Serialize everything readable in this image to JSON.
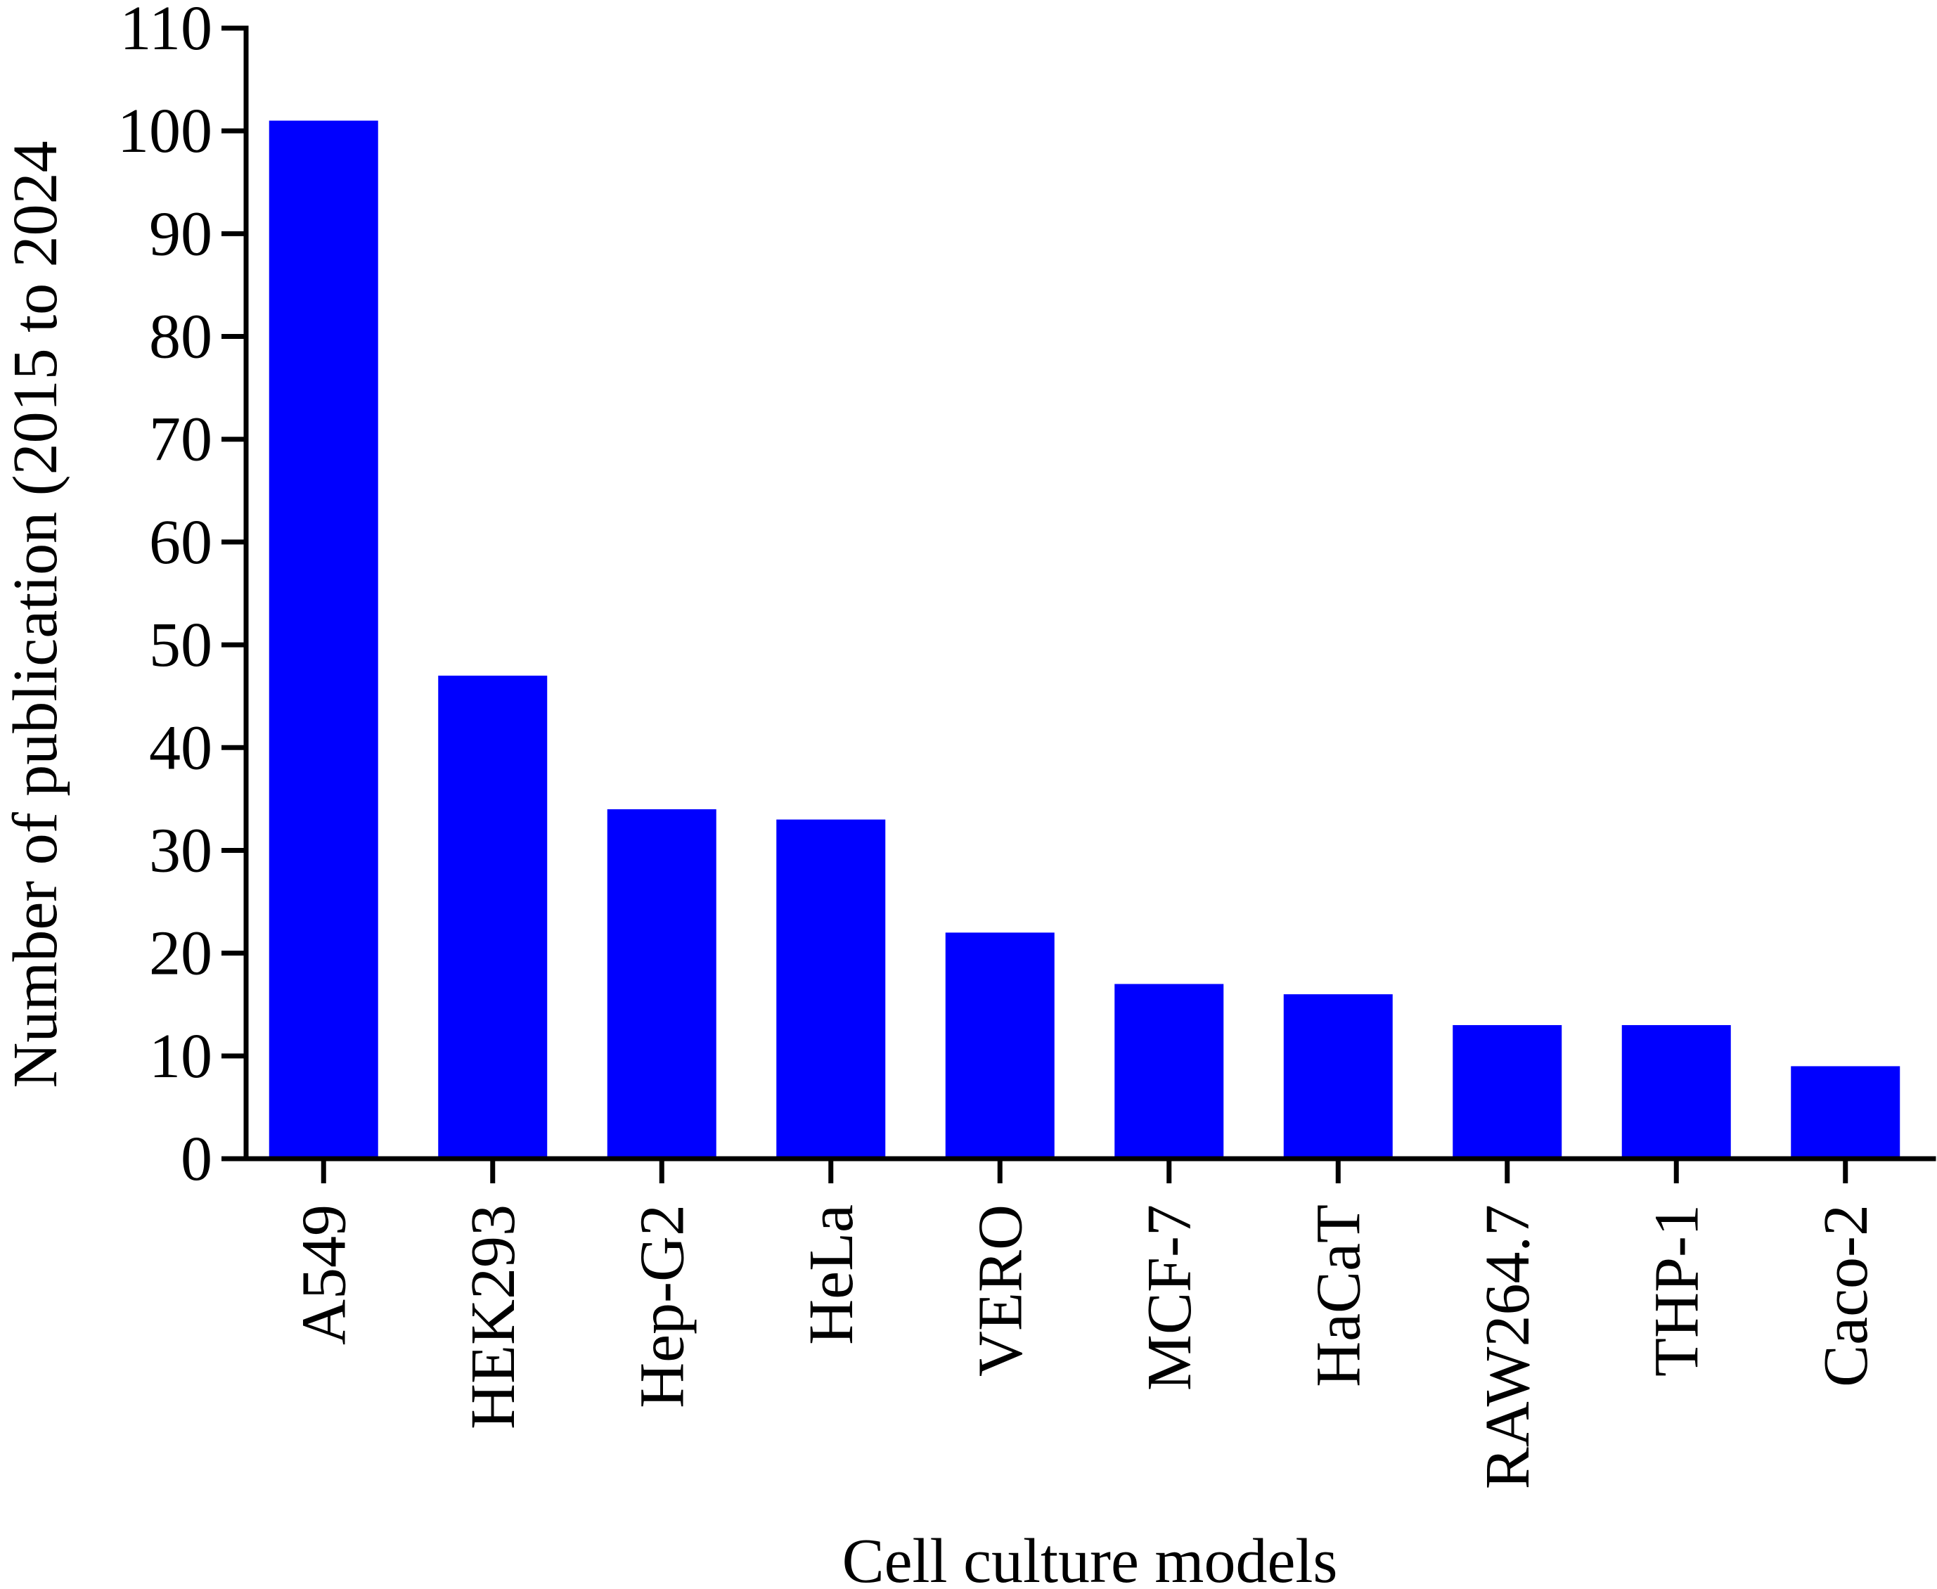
{
  "chart_data": {
    "type": "bar",
    "title": "",
    "xlabel": "Cell culture models",
    "ylabel": "Number of publication (2015 to 2024",
    "categories": [
      "A549",
      "HEK293",
      "Hep-G2",
      "HeLa",
      "VERO",
      "MCF-7",
      "HaCaT",
      "RAW264.7",
      "THP-1",
      "Caco-2"
    ],
    "values": [
      101,
      47,
      34,
      33,
      22,
      17,
      16,
      13,
      13,
      9
    ],
    "ylim": [
      0,
      110
    ],
    "yticks": [
      0,
      10,
      20,
      30,
      40,
      50,
      60,
      70,
      80,
      90,
      100,
      110
    ],
    "bar_color": "#0000FF",
    "axis_color": "#000000",
    "grid": false,
    "legend": "none"
  }
}
